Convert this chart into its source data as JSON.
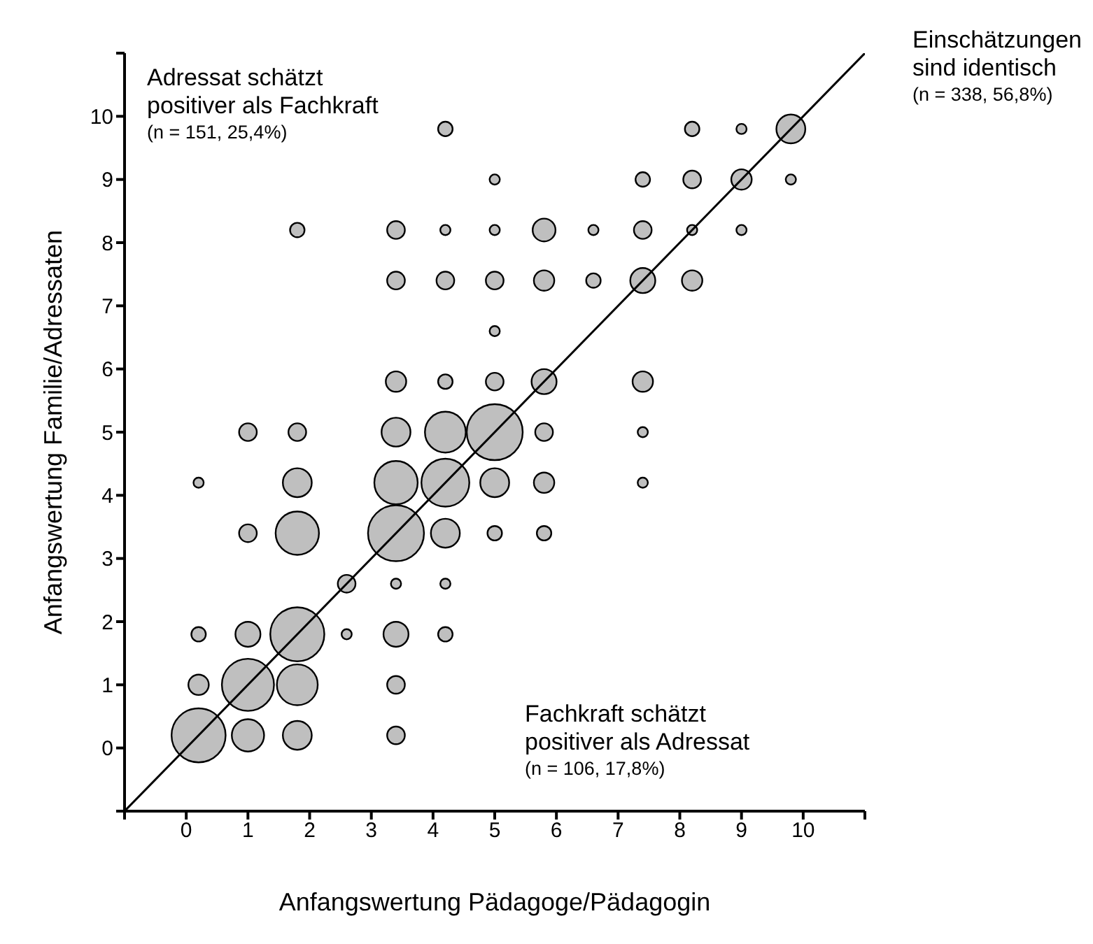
{
  "chart_data": {
    "type": "bubble",
    "xlabel": "Anfangswertung Pädagoge/Pädagogin",
    "ylabel": "Anfangswertung Familie/Adressaten",
    "annotations": [
      "Adressat schätzt\npositiver als Fachkraft\n(n = 151, 25,4%)",
      "Einschätzungen\nsind identisch\n(n = 338, 56,8%)",
      "Fachkraft schätzt\npositiver als Adressat\n(n = 106, 17,8%)"
    ],
    "xlim": [
      -1,
      11
    ],
    "ylim": [
      -1,
      11
    ],
    "xticks": [
      {
        "value": -1,
        "label": null
      },
      0,
      1,
      2,
      3,
      4,
      5,
      6,
      7,
      8,
      9,
      10,
      {
        "value": 11,
        "label": null
      }
    ],
    "yticks": [
      {
        "value": -1,
        "label": null
      },
      0,
      1,
      2,
      3,
      4,
      5,
      6,
      7,
      8,
      9,
      10,
      {
        "value": 11,
        "label": null
      }
    ],
    "legend": false,
    "series": [
      {
        "type": "line",
        "color": "#000000",
        "x": [
          -1,
          11
        ],
        "values": [
          -1,
          11
        ]
      },
      {
        "type": "bubble",
        "color": "#000000",
        "x": [
          4.2,
          8.2,
          9,
          9.8,
          5,
          7.4,
          8.2,
          9,
          9.8,
          1.8,
          3.4,
          4.2,
          5,
          5.8,
          6.6,
          7.4,
          8.2,
          9,
          3.4,
          4.2,
          5,
          5.8,
          6.6,
          7.4,
          8.2,
          5,
          3.4,
          4.2,
          5,
          5.8,
          7.4,
          1,
          1.8,
          3.4,
          4.2,
          5,
          5.8,
          7.4,
          0.2,
          1.8,
          3.4,
          4.2,
          5,
          5.8,
          7.4,
          1,
          1.8,
          3.4,
          4.2,
          5,
          5.8,
          2.6,
          3.4,
          4.2,
          0.2,
          1,
          1.8,
          2.6,
          3.4,
          4.2,
          0.2,
          1,
          1.8,
          3.4,
          0.2,
          1,
          1.8,
          3.4
        ],
        "values": [
          9.8,
          9.8,
          9.8,
          9.8,
          9,
          9,
          9,
          9,
          9,
          8.2,
          8.2,
          8.2,
          8.2,
          8.2,
          8.2,
          8.2,
          8.2,
          8.2,
          7.4,
          7.4,
          7.4,
          7.4,
          7.4,
          7.4,
          7.4,
          6.6,
          5.8,
          5.8,
          5.8,
          5.8,
          5.8,
          5,
          5,
          5,
          5,
          5,
          5,
          5,
          4.2,
          4.2,
          4.2,
          4.2,
          4.2,
          4.2,
          4.2,
          3.4,
          3.4,
          3.4,
          3.4,
          3.4,
          3.4,
          2.6,
          2.6,
          2.6,
          1.8,
          1.8,
          1.8,
          1.8,
          1.8,
          1.8,
          1,
          1,
          1,
          1,
          0.2,
          0.2,
          0.2,
          0.2
        ],
        "sizes": [
          0.067,
          0.067,
          0.033,
          0.267,
          0.033,
          0.067,
          0.1,
          0.133,
          0.033,
          0.067,
          0.1,
          0.033,
          0.033,
          0.167,
          0.033,
          0.1,
          0.033,
          0.033,
          0.1,
          0.1,
          0.1,
          0.133,
          0.067,
          0.2,
          0.133,
          0.033,
          0.133,
          0.067,
          0.1,
          0.2,
          0.133,
          0.1,
          0.1,
          0.267,
          0.533,
          1,
          0.1,
          0.033,
          0.033,
          0.267,
          0.6,
          0.733,
          0.267,
          0.133,
          0.033,
          0.1,
          0.6,
          1,
          0.267,
          0.067,
          0.067,
          0.1,
          0.033,
          0.033,
          0.067,
          0.2,
          0.933,
          0.033,
          0.2,
          0.067,
          0.133,
          0.867,
          0.533,
          0.1,
          0.933,
          0.333,
          0.267,
          0.1
        ]
      }
    ]
  }
}
